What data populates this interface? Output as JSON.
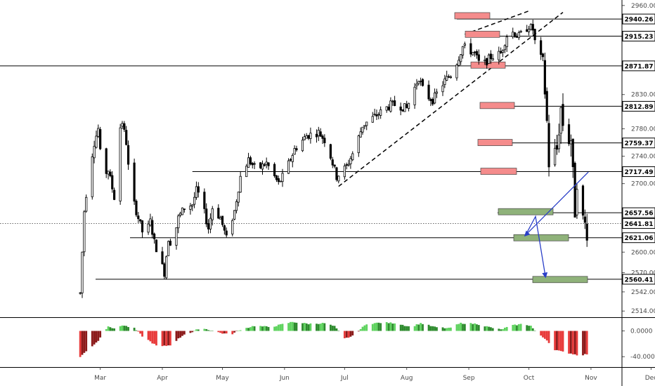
{
  "chart_data": [
    {
      "type": "candlestick",
      "xaxis_labels": [
        "Mar",
        "Apr",
        "May",
        "Jun",
        "Jul",
        "Aug",
        "Sep",
        "Oct",
        "Nov",
        "Dec"
      ],
      "yaxis_ticks": [
        "2960.00",
        "2830.00",
        "2780.00",
        "2740.00",
        "2700.00",
        "2600.00",
        "2570.00",
        "2542.00",
        "2514.00"
      ],
      "highlighted_levels": [
        "2940.26",
        "2915.23",
        "2871.87",
        "2812.89",
        "2759.37",
        "2717.49",
        "2657.56",
        "2641.81",
        "2621.06",
        "2560.41"
      ],
      "ylim": [
        2505,
        2968
      ],
      "control_points": [
        [
          "Feb 19",
          2540
        ],
        [
          "Feb 21",
          2660
        ],
        [
          "Feb 23",
          2710
        ],
        [
          "Feb 26",
          2760
        ],
        [
          "Feb 28",
          2780
        ],
        [
          "Mar 2",
          2710
        ],
        [
          "Mar 5",
          2720
        ],
        [
          "Mar 8",
          2680
        ],
        [
          "Mar 10",
          2775
        ],
        [
          "Mar 12",
          2790
        ],
        [
          "Mar 14",
          2760
        ],
        [
          "Mar 16",
          2690
        ],
        [
          "Mar 19",
          2660
        ],
        [
          "Mar 21",
          2640
        ],
        [
          "Mar 23",
          2620
        ],
        [
          "Mar 26",
          2645
        ],
        [
          "Mar 28",
          2615
        ],
        [
          "Apr 2",
          2570
        ],
        [
          "Apr 4",
          2620
        ],
        [
          "Apr 6",
          2610
        ],
        [
          "Apr 9",
          2650
        ],
        [
          "Apr 12",
          2665
        ],
        [
          "Apr 16",
          2670
        ],
        [
          "Apr 18",
          2690
        ],
        [
          "Apr 20",
          2680
        ],
        [
          "Apr 24",
          2635
        ],
        [
          "Apr 26",
          2665
        ],
        [
          "Apr 30",
          2650
        ],
        [
          "May 3",
          2620
        ],
        [
          "May 7",
          2660
        ],
        [
          "May 10",
          2710
        ],
        [
          "May 14",
          2735
        ],
        [
          "May 18",
          2720
        ],
        [
          "May 23",
          2730
        ],
        [
          "May 29",
          2700
        ],
        [
          "Jun 1",
          2715
        ],
        [
          "Jun 6",
          2750
        ],
        [
          "Jun 12",
          2770
        ],
        [
          "Jun 18",
          2775
        ],
        [
          "Jun 22",
          2760
        ],
        [
          "Jun 27",
          2710
        ],
        [
          "Jul 2",
          2725
        ],
        [
          "Jul 6",
          2750
        ],
        [
          "Jul 10",
          2785
        ],
        [
          "Jul 17",
          2800
        ],
        [
          "Jul 24",
          2815
        ],
        [
          "Jul 27",
          2815
        ],
        [
          "Aug 1",
          2810
        ],
        [
          "Aug 7",
          2855
        ],
        [
          "Aug 10",
          2830
        ],
        [
          "Aug 14",
          2822
        ],
        [
          "Aug 20",
          2850
        ],
        [
          "Aug 24",
          2862
        ],
        [
          "Aug 29",
          2900
        ],
        [
          "Sep 4",
          2890
        ],
        [
          "Sep 7",
          2870
        ],
        [
          "Sep 12",
          2885
        ],
        [
          "Sep 17",
          2890
        ],
        [
          "Sep 21",
          2925
        ],
        [
          "Sep 26",
          2915
        ],
        [
          "Oct 1",
          2930
        ],
        [
          "Oct 3",
          2925
        ],
        [
          "Oct 5",
          2890
        ],
        [
          "Oct 8",
          2880
        ],
        [
          "Oct 10",
          2790
        ],
        [
          "Oct 11",
          2730
        ],
        [
          "Oct 15",
          2750
        ],
        [
          "Oct 17",
          2810
        ],
        [
          "Oct 19",
          2765
        ],
        [
          "Oct 22",
          2765
        ],
        [
          "Oct 24",
          2660
        ],
        [
          "Oct 25",
          2705
        ],
        [
          "Oct 26",
          2660
        ],
        [
          "Oct 29",
          2640
        ],
        [
          "Oct 30",
          2630
        ]
      ],
      "oscillator": {
        "ylim": [
          -55,
          18
        ],
        "ticks": [
          "0.0000",
          "-40.0000"
        ],
        "control_points": [
          [
            "Feb 19",
            -40
          ],
          [
            "Feb 28",
            -15
          ],
          [
            "Mar 5",
            8
          ],
          [
            "Mar 8",
            3
          ],
          [
            "Mar 12",
            9
          ],
          [
            "Mar 18",
            4
          ],
          [
            "Mar 22",
            -8
          ],
          [
            "Mar 30",
            -25
          ],
          [
            "Apr 5",
            -22
          ],
          [
            "Apr 12",
            -5
          ],
          [
            "Apr 16",
            -2
          ],
          [
            "Apr 20",
            5
          ],
          [
            "Apr 25",
            1
          ],
          [
            "Apr 30",
            -3
          ],
          [
            "May 5",
            -6
          ],
          [
            "May 10",
            2
          ],
          [
            "May 17",
            8
          ],
          [
            "May 25",
            6
          ],
          [
            "Jun 5",
            14
          ],
          [
            "Jun 13",
            11
          ],
          [
            "Jun 21",
            12
          ],
          [
            "Jun 26",
            7
          ],
          [
            "Jul 1",
            -12
          ],
          [
            "Jul 5",
            -8
          ],
          [
            "Jul 12",
            11
          ],
          [
            "Jul 20",
            13
          ],
          [
            "Jul 27",
            12
          ],
          [
            "Aug 3",
            6
          ],
          [
            "Aug 8",
            12
          ],
          [
            "Aug 15",
            6
          ],
          [
            "Aug 22",
            4
          ],
          [
            "Aug 28",
            12
          ],
          [
            "Sep 5",
            11
          ],
          [
            "Sep 11",
            6
          ],
          [
            "Sep 17",
            2
          ],
          [
            "Sep 22",
            8
          ],
          [
            "Sep 28",
            11
          ],
          [
            "Oct 2",
            8
          ],
          [
            "Oct 5",
            -4
          ],
          [
            "Oct 10",
            -14
          ],
          [
            "Oct 13",
            -28
          ],
          [
            "Oct 17",
            -32
          ],
          [
            "Oct 22",
            -35
          ],
          [
            "Oct 26",
            -38
          ],
          [
            "Oct 30",
            -36
          ]
        ]
      }
    }
  ],
  "colors": {
    "candle_up": "#ffffff",
    "candle_down": "#000000",
    "resistance_zone": "#f58c8c",
    "support_zone": "#8fb27a",
    "projection_arrow": "#2a3fc8",
    "osc_positive": "#5fd35f",
    "osc_negative": "#e83a3a"
  }
}
